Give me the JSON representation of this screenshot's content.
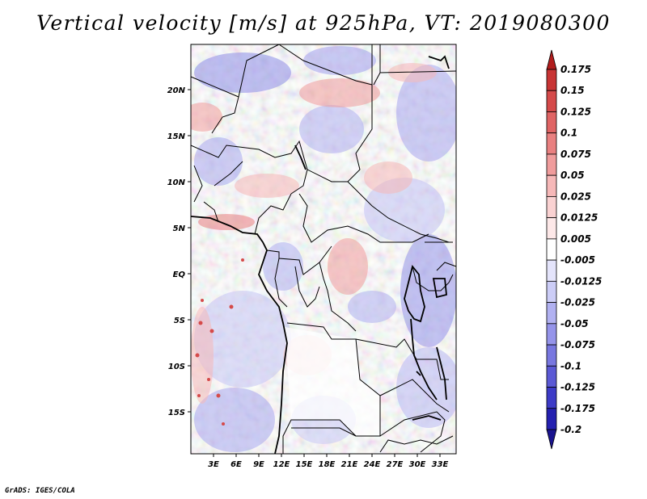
{
  "title": "Vertical velocity [m/s] at 925hPa, VT: 2019080300",
  "credit": "GrADS: IGES/COLA",
  "map": {
    "lat_labels": [
      "20N",
      "15N",
      "10N",
      "5N",
      "EQ",
      "5S",
      "10S",
      "15S"
    ],
    "lon_labels": [
      "3E",
      "6E",
      "9E",
      "12E",
      "15E",
      "18E",
      "21E",
      "24E",
      "27E",
      "30E",
      "33E"
    ]
  },
  "colorbar": {
    "labels": [
      "0.175",
      "0.15",
      "0.125",
      "0.1",
      "0.075",
      "0.05",
      "0.025",
      "0.0125",
      "0.005",
      "-0.005",
      "-0.0125",
      "-0.025",
      "-0.05",
      "-0.075",
      "-0.1",
      "-0.125",
      "-0.175",
      "-0.2"
    ],
    "colors": [
      "#b11d1d",
      "#c83434",
      "#d54a4a",
      "#e06464",
      "#e98080",
      "#f09c9c",
      "#f6b8b8",
      "#fad2d2",
      "#fde8e8",
      "#ffffff",
      "#e4e4fb",
      "#cccdf7",
      "#b1b1f1",
      "#9594ea",
      "#7877e0",
      "#5b59d5",
      "#3d3bc7",
      "#2420b0",
      "#1a148f"
    ]
  }
}
